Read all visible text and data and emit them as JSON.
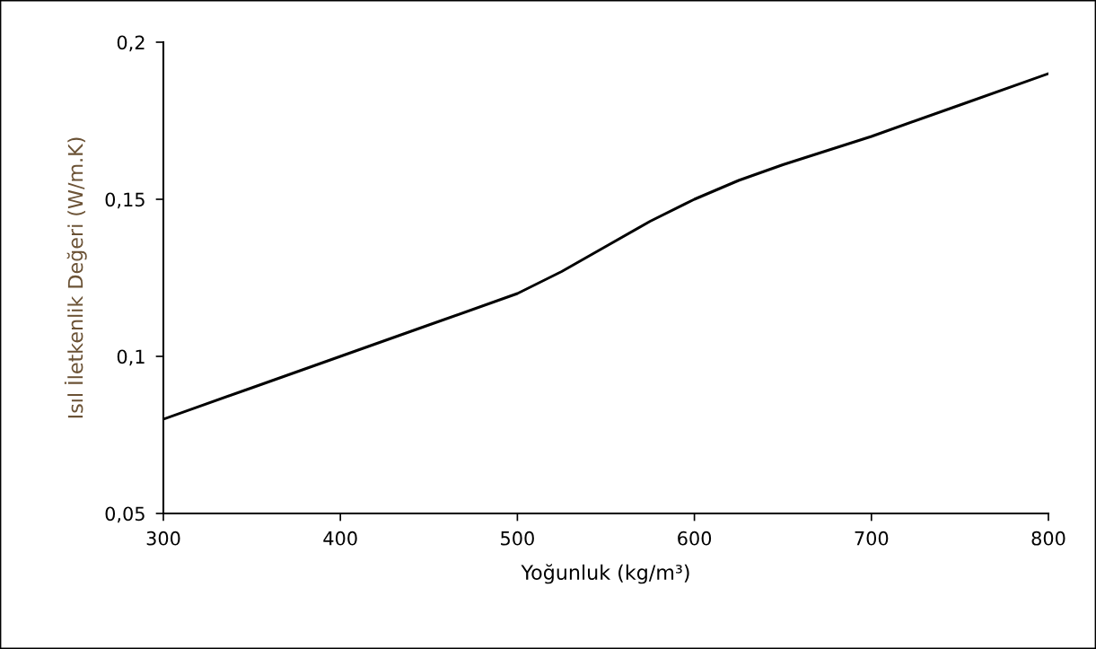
{
  "chart_data": {
    "type": "line",
    "xlabel": "Yoğunluk (kg/m³)",
    "ylabel": "Isıl İletkenlik Değeri (W/m.K)",
    "x": [
      300,
      350,
      400,
      450,
      500,
      525,
      550,
      575,
      600,
      625,
      650,
      700,
      750,
      800
    ],
    "series": [
      {
        "color": "#000000",
        "values": [
          0.08,
          0.09,
          0.1,
          0.11,
          0.12,
          0.127,
          0.135,
          0.143,
          0.15,
          0.156,
          0.161,
          0.17,
          0.18,
          0.19
        ]
      }
    ],
    "xlim": [
      300,
      800
    ],
    "xticks": [
      300,
      400,
      500,
      600,
      700,
      800
    ],
    "ylim": [
      0.05,
      0.2
    ],
    "yticks": [
      {
        "value": 0.05,
        "label": "0,05"
      },
      {
        "value": 0.1,
        "label": "0,1"
      },
      {
        "value": 0.15,
        "label": "0,15"
      },
      {
        "value": 0.2,
        "label": "0,2"
      }
    ],
    "grid": false,
    "legend": false,
    "marker": "none",
    "line_style": "solid"
  }
}
